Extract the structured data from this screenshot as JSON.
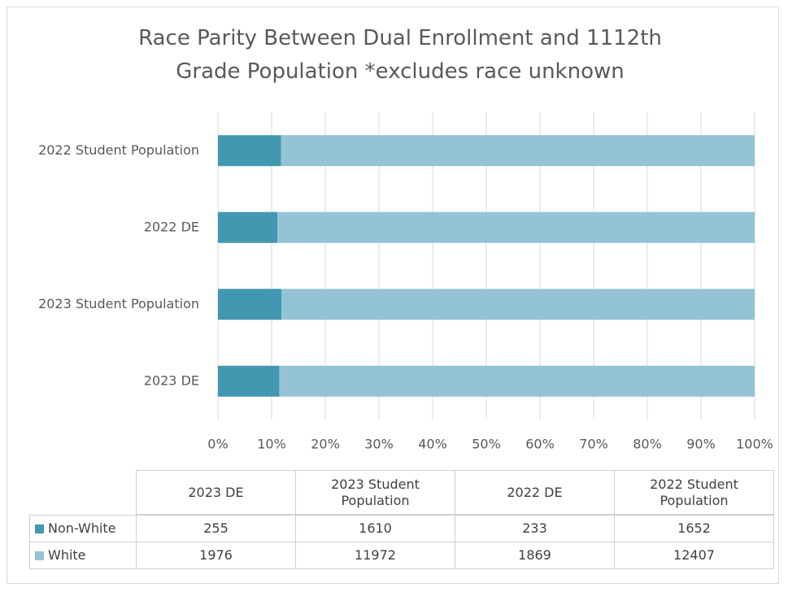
{
  "chart_data": {
    "type": "bar",
    "orientation": "horizontal",
    "stacking": "percent",
    "title": "Race Parity Between Dual Enrollment and 1112th Grade Population *excludes race unknown",
    "categories": [
      "2023 DE",
      "2023 Student Population",
      "2022 DE",
      "2022 Student Population"
    ],
    "series": [
      {
        "name": "Non-White",
        "color": "#4198b0",
        "values": [
          255,
          1610,
          233,
          1652
        ]
      },
      {
        "name": "White",
        "color": "#93c3d4",
        "values": [
          1976,
          11972,
          1869,
          12407
        ]
      }
    ],
    "xlim": [
      0,
      100
    ],
    "xticks": [
      {
        "value": 0,
        "label": "0%"
      },
      {
        "value": 10,
        "label": "10%"
      },
      {
        "value": 20,
        "label": "20%"
      },
      {
        "value": 30,
        "label": "30%"
      },
      {
        "value": 40,
        "label": "40%"
      },
      {
        "value": 50,
        "label": "50%"
      },
      {
        "value": 60,
        "label": "60%"
      },
      {
        "value": 70,
        "label": "70%"
      },
      {
        "value": 80,
        "label": "80%"
      },
      {
        "value": 90,
        "label": "90%"
      },
      {
        "value": 100,
        "label": "100%"
      }
    ],
    "grid": true,
    "data_table": true
  }
}
